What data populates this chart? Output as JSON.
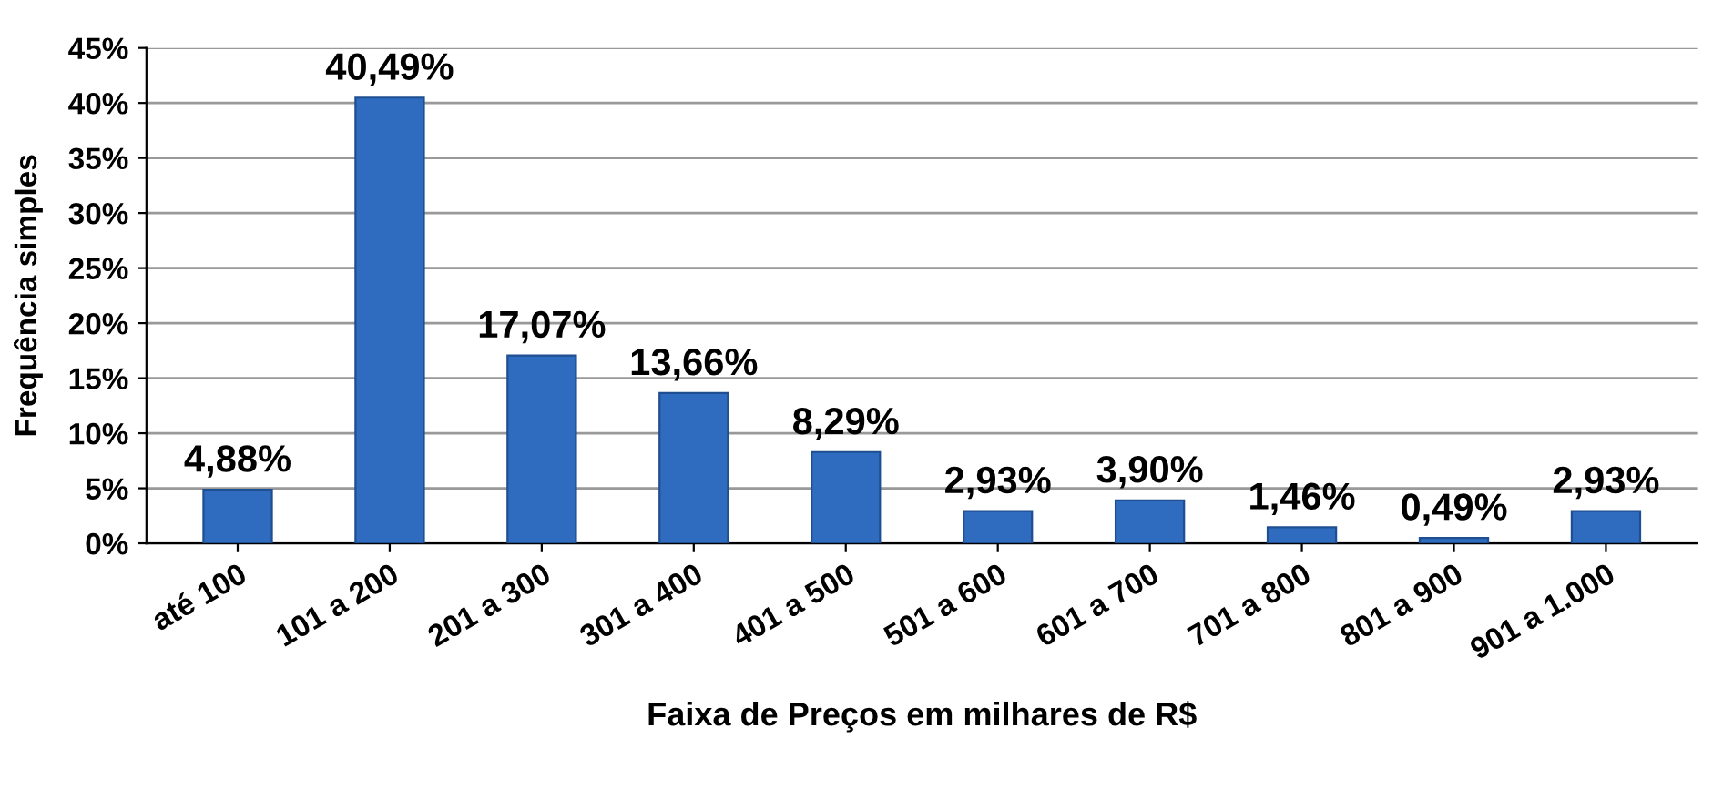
{
  "chart_data": {
    "type": "bar",
    "xlabel": "Faixa de Preços em milhares de R$",
    "ylabel": "Frequência simples",
    "categories": [
      "até 100",
      "101 a 200",
      "201 a 300",
      "301 a 400",
      "401 a 500",
      "501 a 600",
      "601 a 700",
      "701 a 800",
      "801 a 900",
      "901 a 1.000"
    ],
    "values": [
      4.88,
      40.49,
      17.07,
      13.66,
      8.29,
      2.93,
      3.9,
      1.46,
      0.49,
      2.93
    ],
    "value_labels": [
      "4,88%",
      "40,49%",
      "17,07%",
      "13,66%",
      "8,29%",
      "2,93%",
      "3,90%",
      "1,46%",
      "0,49%",
      "2,93%"
    ],
    "color": "#2f6cc0",
    "ylim": [
      0,
      45
    ],
    "yticks": [
      {
        "value": 0,
        "label": "0%"
      },
      {
        "value": 5,
        "label": "5%"
      },
      {
        "value": 10,
        "label": "10%"
      },
      {
        "value": 15,
        "label": "15%"
      },
      {
        "value": 20,
        "label": "20%"
      },
      {
        "value": 25,
        "label": "25%"
      },
      {
        "value": 30,
        "label": "30%"
      },
      {
        "value": 35,
        "label": "35%"
      },
      {
        "value": 40,
        "label": "40%"
      },
      {
        "value": 45,
        "label": "45%"
      }
    ],
    "grid": "y"
  }
}
